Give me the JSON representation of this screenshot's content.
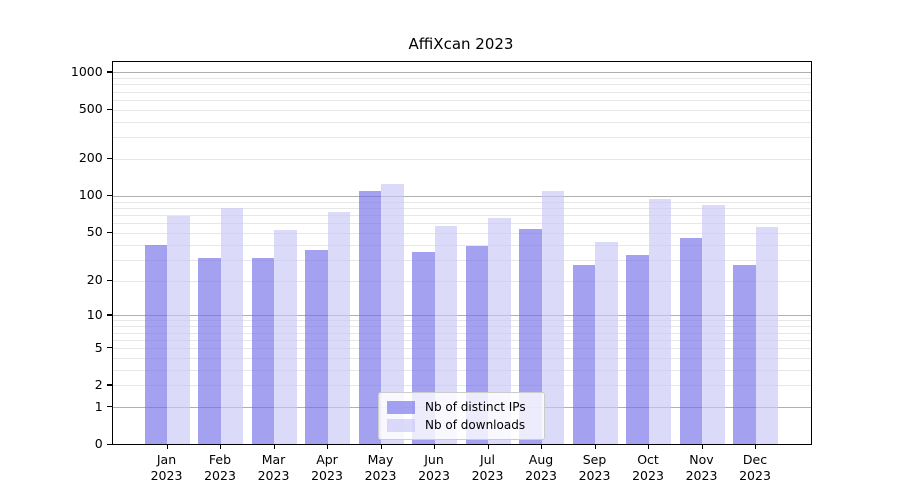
{
  "chart_data": {
    "type": "bar",
    "title": "AffiXcan 2023",
    "y_scale": "log1p",
    "grid": true,
    "legend_position": "inside-bottom-center",
    "categories": [
      "Jan 2023",
      "Feb 2023",
      "Mar 2023",
      "Apr 2023",
      "May 2023",
      "Jun 2023",
      "Jul 2023",
      "Aug 2023",
      "Sep 2023",
      "Oct 2023",
      "Nov 2023",
      "Dec 2023"
    ],
    "months": [
      "Jan",
      "Feb",
      "Mar",
      "Apr",
      "May",
      "Jun",
      "Jul",
      "Aug",
      "Sep",
      "Oct",
      "Nov",
      "Dec"
    ],
    "year_label": "2023",
    "series": [
      {
        "name": "Nb of distinct IPs",
        "color": "rgba(115,112,232,0.65)",
        "values": [
          40,
          31,
          31,
          36,
          110,
          35,
          39,
          54,
          27,
          33,
          45,
          27
        ]
      },
      {
        "name": "Nb of downloads",
        "color": "rgba(200,198,246,0.65)",
        "values": [
          68,
          80,
          53,
          74,
          126,
          57,
          66,
          110,
          42,
          95,
          85,
          56
        ]
      }
    ],
    "y_axis": {
      "tick_values": [
        0,
        1,
        2,
        5,
        10,
        20,
        50,
        100,
        200,
        500,
        1000
      ],
      "major_grid_values": [
        1,
        10,
        100,
        1000
      ],
      "ylim_top": 1200
    },
    "colors": {
      "major_grid": "#b0b0b0",
      "minor_grid": "#e7e7e7",
      "axis": "#000000",
      "background": "#ffffff"
    }
  }
}
